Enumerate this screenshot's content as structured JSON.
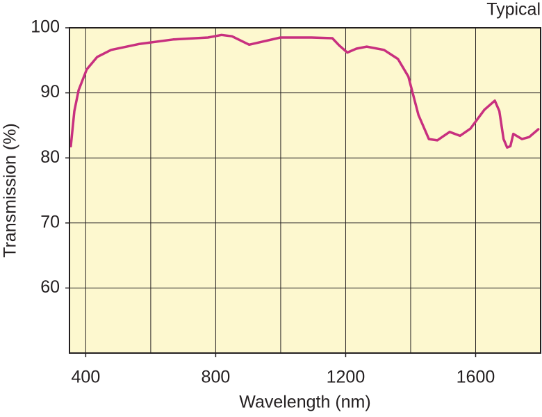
{
  "chart_data": {
    "type": "line",
    "annotation": "Typical",
    "x_label": "Wavelength (nm)",
    "y_label": "Transmission (%)",
    "xlim": [
      350,
      1800
    ],
    "ylim": [
      50,
      100
    ],
    "xticks": [
      400,
      800,
      1200,
      1600
    ],
    "xgrid": [
      400,
      600,
      800,
      1000,
      1200,
      1400,
      1600
    ],
    "yticks": [
      60,
      70,
      80,
      90,
      100
    ],
    "grid": true,
    "background": "#fdf8cf",
    "series": [
      {
        "color": "#c8307f",
        "x": [
          354,
          365,
          378,
          403,
          435,
          478,
          563,
          669,
          776,
          818,
          850,
          903,
          946,
          999,
          1095,
          1159,
          1180,
          1205,
          1233,
          1265,
          1318,
          1361,
          1393,
          1424,
          1456,
          1482,
          1520,
          1552,
          1584,
          1627,
          1659,
          1673,
          1686,
          1697,
          1707,
          1716,
          1743,
          1765,
          1793
        ],
        "values": [
          81.8,
          87.2,
          90.4,
          93.6,
          95.5,
          96.6,
          97.5,
          98.2,
          98.5,
          98.9,
          98.7,
          97.4,
          97.9,
          98.5,
          98.5,
          98.4,
          97.3,
          96.2,
          96.8,
          97.1,
          96.6,
          95.2,
          92.5,
          86.6,
          82.9,
          82.7,
          84.0,
          83.4,
          84.5,
          87.4,
          88.8,
          87.2,
          82.9,
          81.6,
          81.8,
          83.7,
          82.9,
          83.2,
          84.4
        ]
      }
    ]
  }
}
